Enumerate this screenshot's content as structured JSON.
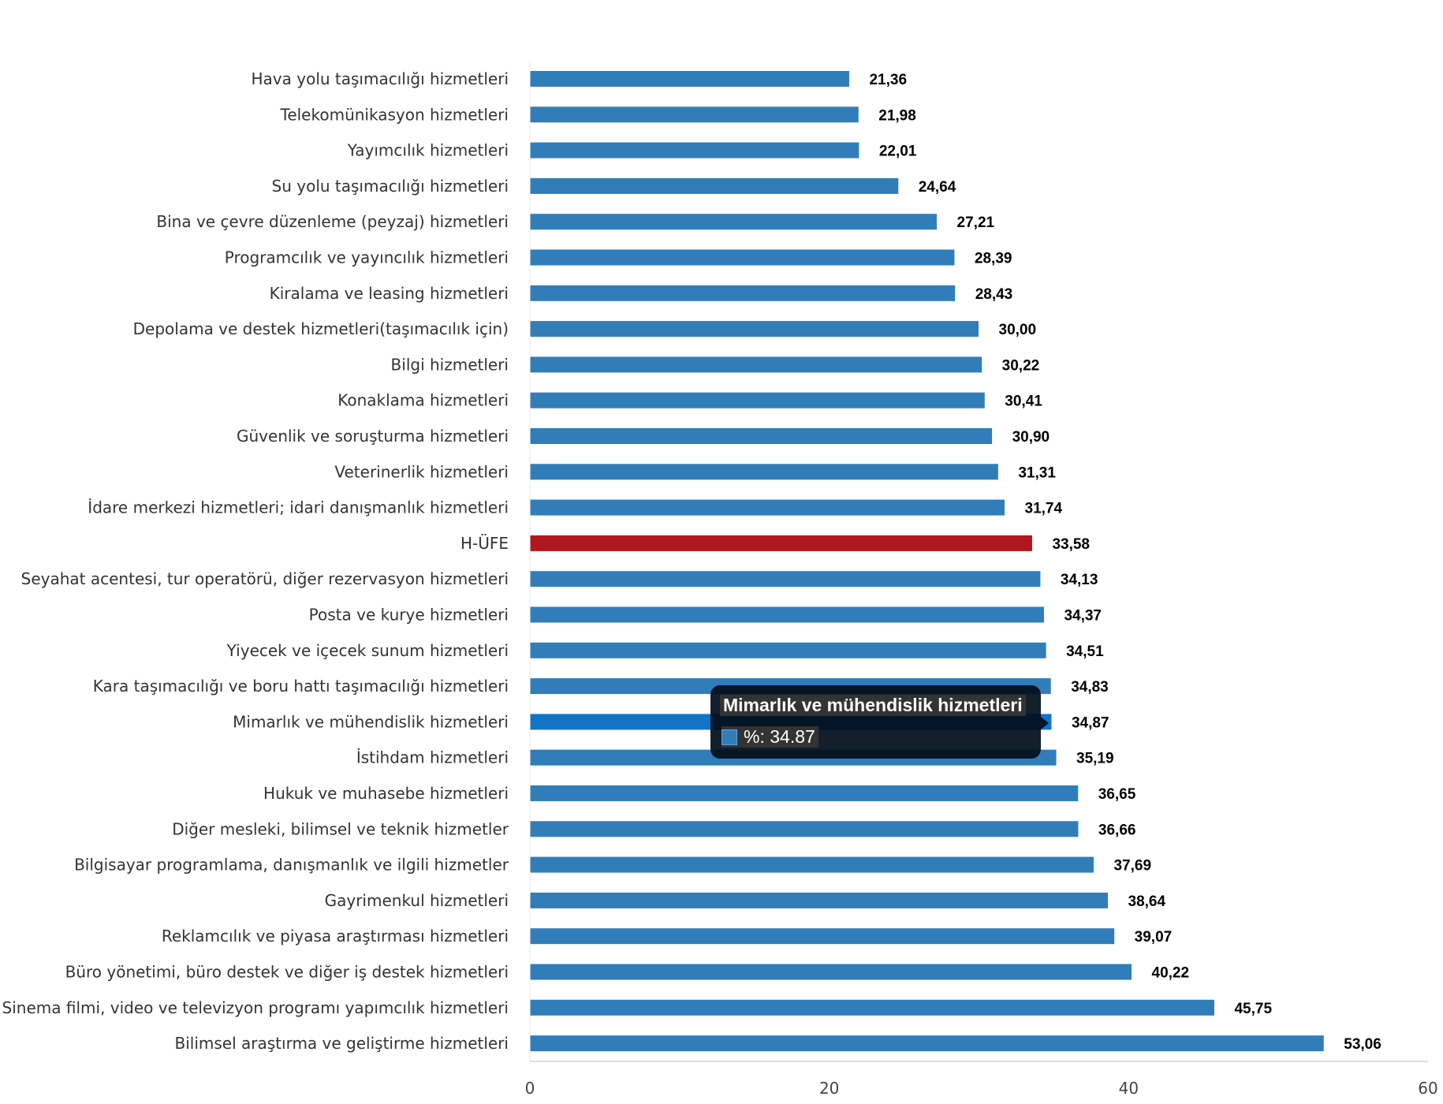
{
  "chart_data": {
    "type": "bar",
    "orientation": "horizontal",
    "categories": [
      "Hava yolu taşımacılığı hizmetleri",
      "Telekomünikasyon hizmetleri",
      "Yayımcılık hizmetleri",
      "Su yolu taşımacılığı hizmetleri",
      "Bina ve çevre düzenleme (peyzaj) hizmetleri",
      "Programcılık ve yayıncılık hizmetleri",
      "Kiralama ve leasing hizmetleri",
      "Depolama ve destek hizmetleri(taşımacılık için)",
      "Bilgi hizmetleri",
      "Konaklama hizmetleri",
      "Güvenlik ve soruşturma hizmetleri",
      "Veterinerlik hizmetleri",
      "İdare merkezi hizmetleri; idari danışmanlık hizmetleri",
      "H-ÜFE",
      "Seyahat acentesi, tur operatörü, diğer rezervasyon hizmetleri",
      "Posta ve kurye hizmetleri",
      "Yiyecek ve içecek sunum hizmetleri",
      "Kara taşımacılığı ve boru hattı taşımacılığı hizmetleri",
      "Mimarlık ve mühendislik hizmetleri",
      "İstihdam hizmetleri",
      "Hukuk ve muhasebe hizmetleri",
      "Diğer mesleki, bilimsel ve teknik hizmetler",
      "Bilgisayar programlama, danışmanlık ve ilgili hizmetler",
      "Gayrimenkul hizmetleri",
      "Reklamcılık ve piyasa araştırması hizmetleri",
      "Büro yönetimi, büro destek ve diğer iş destek hizmetleri",
      "Sinema filmi, video ve televizyon programı yapımcılık hizmetleri",
      "Bilimsel araştırma ve geliştirme hizmetleri"
    ],
    "values": [
      21.36,
      21.98,
      22.01,
      24.64,
      27.21,
      28.39,
      28.43,
      30.0,
      30.22,
      30.41,
      30.9,
      31.31,
      31.74,
      33.58,
      34.13,
      34.37,
      34.51,
      34.83,
      34.87,
      35.19,
      36.65,
      36.66,
      37.69,
      38.64,
      39.07,
      40.22,
      45.75,
      53.06
    ],
    "value_labels": [
      "21,36",
      "21,98",
      "22,01",
      "24,64",
      "27,21",
      "28,39",
      "28,43",
      "30,00",
      "30,22",
      "30,41",
      "30,90",
      "31,31",
      "31,74",
      "33,58",
      "34,13",
      "34,37",
      "34,51",
      "34,83",
      "34,87",
      "35,19",
      "36,65",
      "36,66",
      "37,69",
      "38,64",
      "39,07",
      "40,22",
      "45,75",
      "53,06"
    ],
    "xlim": [
      0,
      60
    ],
    "x_ticks": [
      "0",
      "20",
      "40",
      "60"
    ],
    "grid": false,
    "colors": {
      "default": "#317dba",
      "highlight": "#b0171f",
      "hover": "#1174c4"
    },
    "highlight_category": "H-ÜFE",
    "hovered_category": "Mimarlık ve mühendislik hizmetleri"
  },
  "tooltip": {
    "title": "Mimarlık ve mühendislik hizmetleri",
    "row": "%: 34.87",
    "swatch_color": "#317dba"
  }
}
